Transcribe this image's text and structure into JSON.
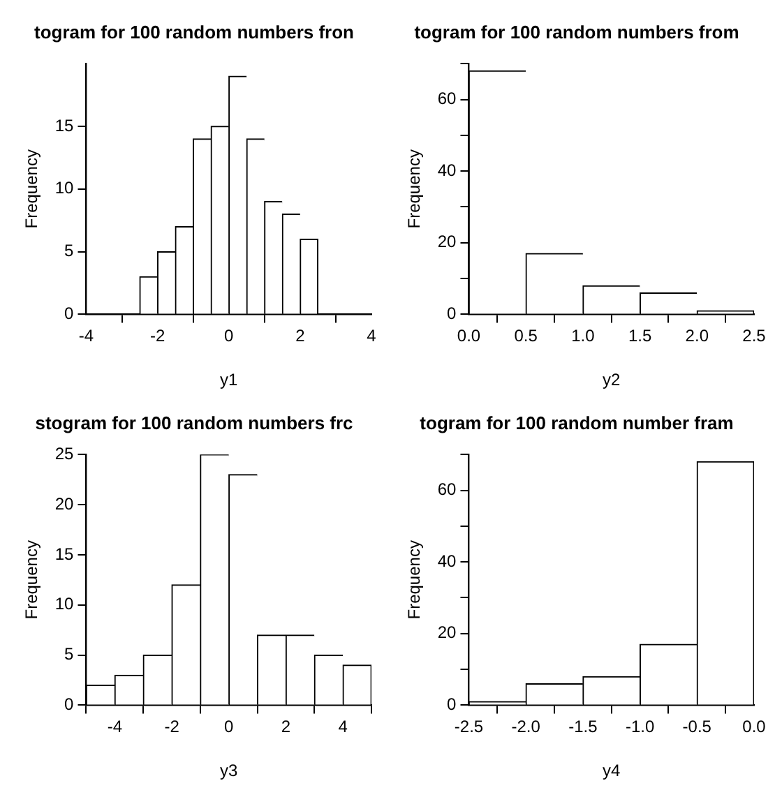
{
  "chart_data": [
    {
      "type": "histogram",
      "title": "togram for 100 random numbers fron",
      "xlabel": "y1",
      "ylabel": "Frequency",
      "bins": [
        -2.5,
        -2,
        -1.5,
        -1,
        -0.5,
        0,
        0.5,
        1,
        1.5,
        2,
        2.5
      ],
      "values": [
        3,
        5,
        7,
        14,
        15,
        19,
        14,
        9,
        8,
        6
      ],
      "color": "#ffffff",
      "xlim": [
        -4,
        4
      ],
      "xticks": [
        -4,
        -2,
        0,
        2,
        4
      ],
      "ylim": [
        0,
        20
      ],
      "yticks": [
        0,
        5,
        10,
        15
      ]
    },
    {
      "type": "histogram",
      "title": "togram for 100 random numbers from",
      "xlabel": "y2",
      "ylabel": "Frequency",
      "bins": [
        0,
        0.5,
        1,
        1.5,
        2,
        2.5
      ],
      "values": [
        68,
        17,
        8,
        6,
        1
      ],
      "color": "#ffffff",
      "xlim": [
        0,
        2.5
      ],
      "xticks": [
        {
          "value": 0,
          "label": "0.0"
        },
        0.5,
        {
          "value": 1,
          "label": "1.0"
        },
        1.5,
        {
          "value": 2,
          "label": "2.0"
        },
        2.5
      ],
      "ylim": [
        0,
        70
      ],
      "yticks": [
        0,
        {
          "value": 10,
          "label": null
        },
        20,
        {
          "value": 30,
          "label": null
        },
        40,
        {
          "value": 50,
          "label": null
        },
        60,
        {
          "value": 70,
          "label": null
        }
      ]
    },
    {
      "type": "histogram",
      "title": "stogram for 100 random numbers frc",
      "xlabel": "y3",
      "ylabel": "Frequency",
      "bins": [
        -5,
        -4,
        -3,
        -2,
        -1,
        0,
        1,
        2,
        3,
        4,
        5
      ],
      "values": [
        2,
        3,
        5,
        12,
        25,
        23,
        7,
        7,
        5,
        4
      ],
      "color": "#ffffff",
      "xlim": [
        -5,
        5
      ],
      "xticks": [
        -4,
        -2,
        0,
        2,
        4
      ],
      "ylim": [
        0,
        25
      ],
      "yticks": [
        0,
        5,
        10,
        15,
        20,
        25
      ]
    },
    {
      "type": "histogram",
      "title": "togram for 100 random number fram",
      "xlabel": "y4",
      "ylabel": "Frequency",
      "bins": [
        -2.5,
        -2,
        -1.5,
        -1,
        -0.5,
        0
      ],
      "values": [
        1,
        6,
        8,
        17,
        68
      ],
      "color": "#ffffff",
      "xlim": [
        -2.5,
        0
      ],
      "xticks": [
        -2.5,
        {
          "value": -2,
          "label": "-2.0"
        },
        -1.5,
        {
          "value": -1,
          "label": "-1.0"
        },
        -0.5,
        {
          "value": 0,
          "label": "0.0"
        }
      ],
      "ylim": [
        0,
        70
      ],
      "yticks": [
        0,
        {
          "value": 10,
          "label": null
        },
        20,
        {
          "value": 30,
          "label": null
        },
        40,
        {
          "value": 50,
          "label": null
        },
        60,
        {
          "value": 70,
          "label": null
        }
      ]
    }
  ]
}
